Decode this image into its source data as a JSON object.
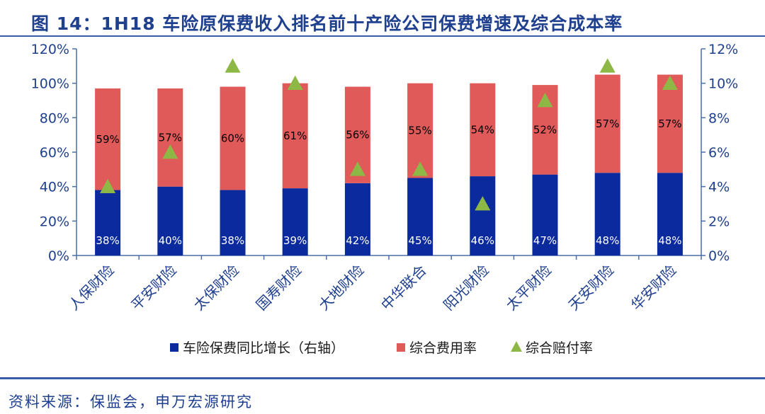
{
  "header": {
    "title": "图 14：1H18 车险原保费收入排名前十产险公司保费增速及综合成本率"
  },
  "footer": {
    "source": "资料来源：保监会，申万宏源研究"
  },
  "colors": {
    "blue": "#0a2a9e",
    "red": "#e15a5a",
    "green": "#8db845",
    "axis": "#4a6fa8",
    "text": "#1f3f8f"
  },
  "chart_data": {
    "type": "bar",
    "stacked": true,
    "title": "1H18 车险原保费收入排名前十产险公司保费增速及综合成本率",
    "categories": [
      "人保财险",
      "平安财险",
      "太保财险",
      "国寿财险",
      "大地财险",
      "中华联合",
      "阳光财险",
      "太平财险",
      "天安财险",
      "华安财险"
    ],
    "series": [
      {
        "name": "车险保费同比增长（右轴）",
        "kind": "bar",
        "values": [
          38,
          40,
          38,
          39,
          42,
          45,
          46,
          47,
          48,
          48
        ],
        "labels": [
          "38%",
          "40%",
          "38%",
          "39%",
          "42%",
          "45%",
          "46%",
          "47%",
          "48%",
          "48%"
        ]
      },
      {
        "name": "综合费用率",
        "kind": "bar",
        "values": [
          59,
          57,
          60,
          61,
          56,
          55,
          54,
          52,
          57,
          57
        ],
        "labels": [
          "59%",
          "57%",
          "60%",
          "61%",
          "56%",
          "55%",
          "54%",
          "52%",
          "57%",
          "57%"
        ]
      },
      {
        "name": "综合赔付率",
        "kind": "triangle-marker",
        "axis": "right",
        "values": [
          4,
          6,
          11,
          10,
          5,
          5,
          3,
          9,
          11,
          10
        ]
      }
    ],
    "y_left": {
      "min": 0,
      "max": 120,
      "step": 20,
      "tick_labels": [
        "0%",
        "20%",
        "40%",
        "60%",
        "80%",
        "100%",
        "120%"
      ]
    },
    "y_right": {
      "min": 0,
      "max": 12,
      "step": 2,
      "tick_labels": [
        "0%",
        "2%",
        "4%",
        "6%",
        "8%",
        "10%",
        "12%"
      ]
    },
    "legend": {
      "position": "bottom",
      "items": [
        "车险保费同比增长（右轴）",
        "综合费用率",
        "综合赔付率"
      ]
    },
    "grid": false
  }
}
